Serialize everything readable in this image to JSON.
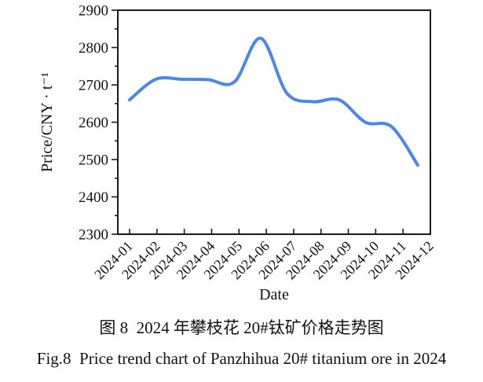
{
  "chart_data": {
    "type": "line",
    "x": [
      "2024-01",
      "2024-02",
      "2024-03",
      "2024-04",
      "2024-05",
      "2024-06",
      "2024-07",
      "2024-08",
      "2024-09",
      "2024-10",
      "2024-11",
      "2024-12"
    ],
    "values": [
      2660,
      2715,
      2715,
      2714,
      2708,
      2825,
      2678,
      2655,
      2660,
      2600,
      2588,
      2485
    ],
    "title": "",
    "xlabel": "Date",
    "ylabel": "Price/CNY · t⁻¹",
    "ylim": [
      2300,
      2900
    ],
    "y_major_ticks": [
      2300,
      2400,
      2500,
      2600,
      2700,
      2800,
      2900
    ],
    "y_minor_step": 50,
    "x_tick_rotation": 45,
    "grid": false,
    "legend": null,
    "line_color": "#4a87e8",
    "axis_color": "#1a1a1a"
  },
  "captions": {
    "zh": "图 8  2024 年攀枝花 20#钛矿价格走势图",
    "en": "Fig.8  Price trend chart of Panzhihua 20# titanium ore in 2024"
  }
}
